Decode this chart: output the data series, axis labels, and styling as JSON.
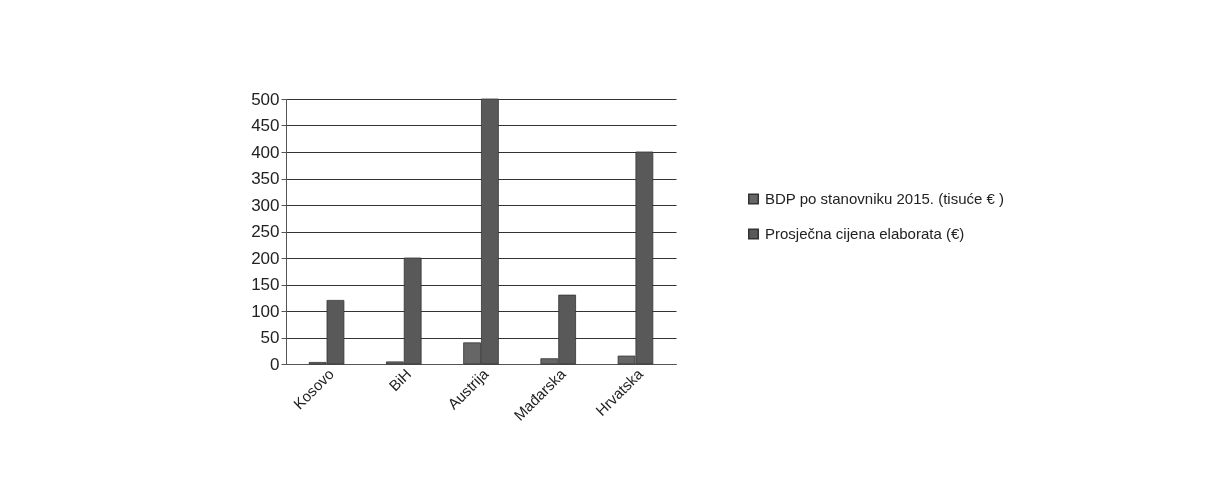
{
  "chart_data": {
    "type": "bar",
    "categories": [
      "Kosovo",
      "BiH",
      "Austrija",
      "Mađarska",
      "Hrvatska"
    ],
    "series": [
      {
        "name": "BDP po stanovniku 2015. (tisuće € )",
        "color": "#666666",
        "values": [
          3,
          4,
          40,
          10,
          15
        ]
      },
      {
        "name": "Prosječna cijena elaborata (€)",
        "color": "#595959",
        "values": [
          120,
          200,
          500,
          130,
          400
        ]
      }
    ],
    "ylim": [
      0,
      500
    ],
    "yticks": [
      0,
      50,
      100,
      150,
      200,
      250,
      300,
      350,
      400,
      450,
      500
    ],
    "grid": "y",
    "legend": "right"
  }
}
